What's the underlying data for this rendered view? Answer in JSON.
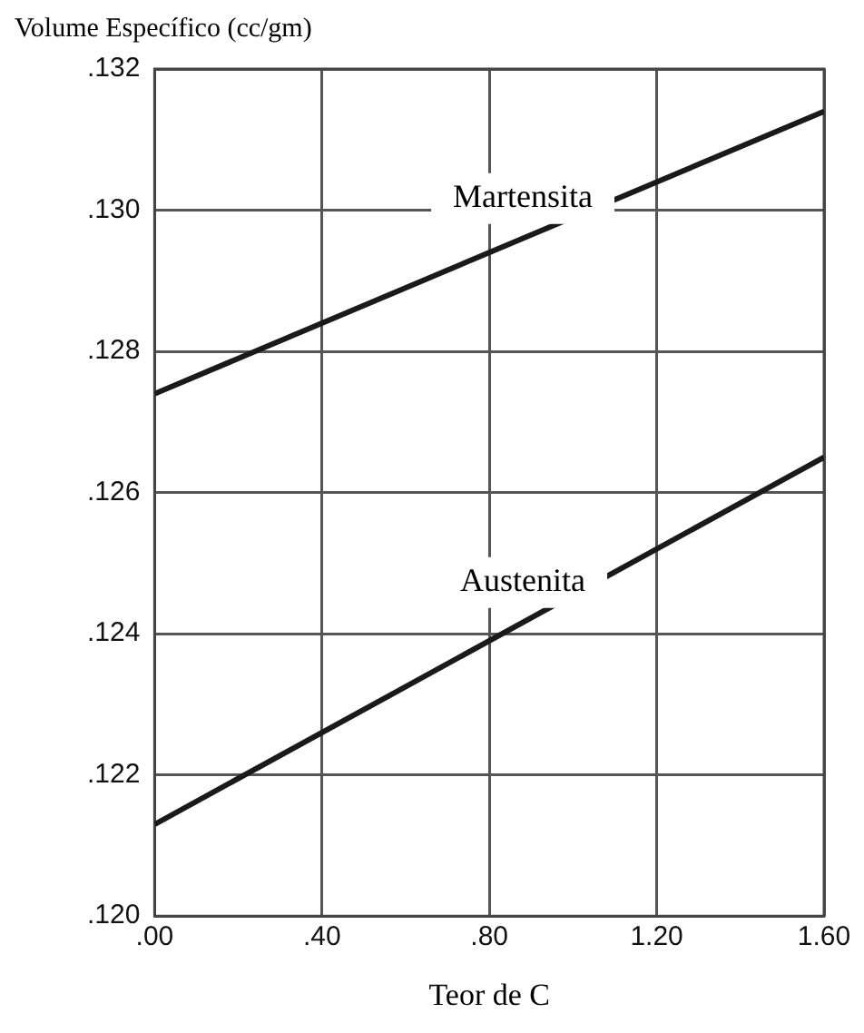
{
  "chart_data": {
    "type": "line",
    "xlabel": "Teor de C",
    "ylabel": "Volume Específico (cc/gm)",
    "x": [
      0,
      1.6
    ],
    "series": [
      {
        "name": "Martensita",
        "color": "#1a1a1a",
        "values": [
          0.1274,
          0.1314
        ]
      },
      {
        "name": "Austenita",
        "color": "#1a1a1a",
        "values": [
          0.1213,
          0.1265
        ]
      }
    ],
    "xlim": [
      0,
      1.6
    ],
    "xticks": [
      {
        "value": 0,
        "label": ".00"
      },
      {
        "value": 0.4,
        "label": ".40"
      },
      {
        "value": 0.8,
        "label": ".80"
      },
      {
        "value": 1.2,
        "label": "1.20"
      },
      {
        "value": 1.6,
        "label": "1.60"
      }
    ],
    "ylim": [
      0.12,
      0.132
    ],
    "yticks": [
      {
        "value": 0.12,
        "label": ".120"
      },
      {
        "value": 0.122,
        "label": ".122"
      },
      {
        "value": 0.124,
        "label": ".124"
      },
      {
        "value": 0.126,
        "label": ".126"
      },
      {
        "value": 0.128,
        "label": ".128"
      },
      {
        "value": 0.13,
        "label": ".130"
      },
      {
        "value": 0.132,
        "label": ".132"
      }
    ],
    "grid": true,
    "legend": false,
    "marker": "none",
    "line_style": "solid"
  }
}
